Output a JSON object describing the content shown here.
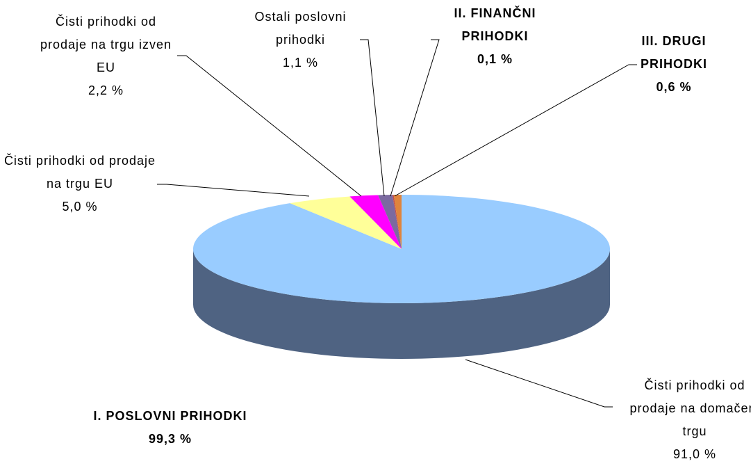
{
  "chart_data": {
    "type": "pie",
    "categories": [
      "Čisti prihodki od prodaje na domačem trgu",
      "Čisti prihodki od prodaje na trgu EU",
      "Čisti prihodki od prodaje na trgu izven EU",
      "Ostali poslovni prihodki",
      "II. FINANČNI PRIHODKI",
      "III. DRUGI PRIHODKI"
    ],
    "values": [
      91.0,
      5.0,
      2.2,
      1.1,
      0.1,
      0.6
    ],
    "value_labels": [
      "91,0 %",
      "5,0 %",
      "2,2 %",
      "1,1 %",
      "0,1 %",
      "0,6 %"
    ],
    "colors": [
      "#99ccff",
      "#ffff99",
      "#ff00ff",
      "#7b6aa0",
      "#c0504d",
      "#e0843c"
    ],
    "group": {
      "label": "I. POSLOVNI PRIHODKI",
      "value": 99.3,
      "value_label": "99,3 %"
    }
  }
}
